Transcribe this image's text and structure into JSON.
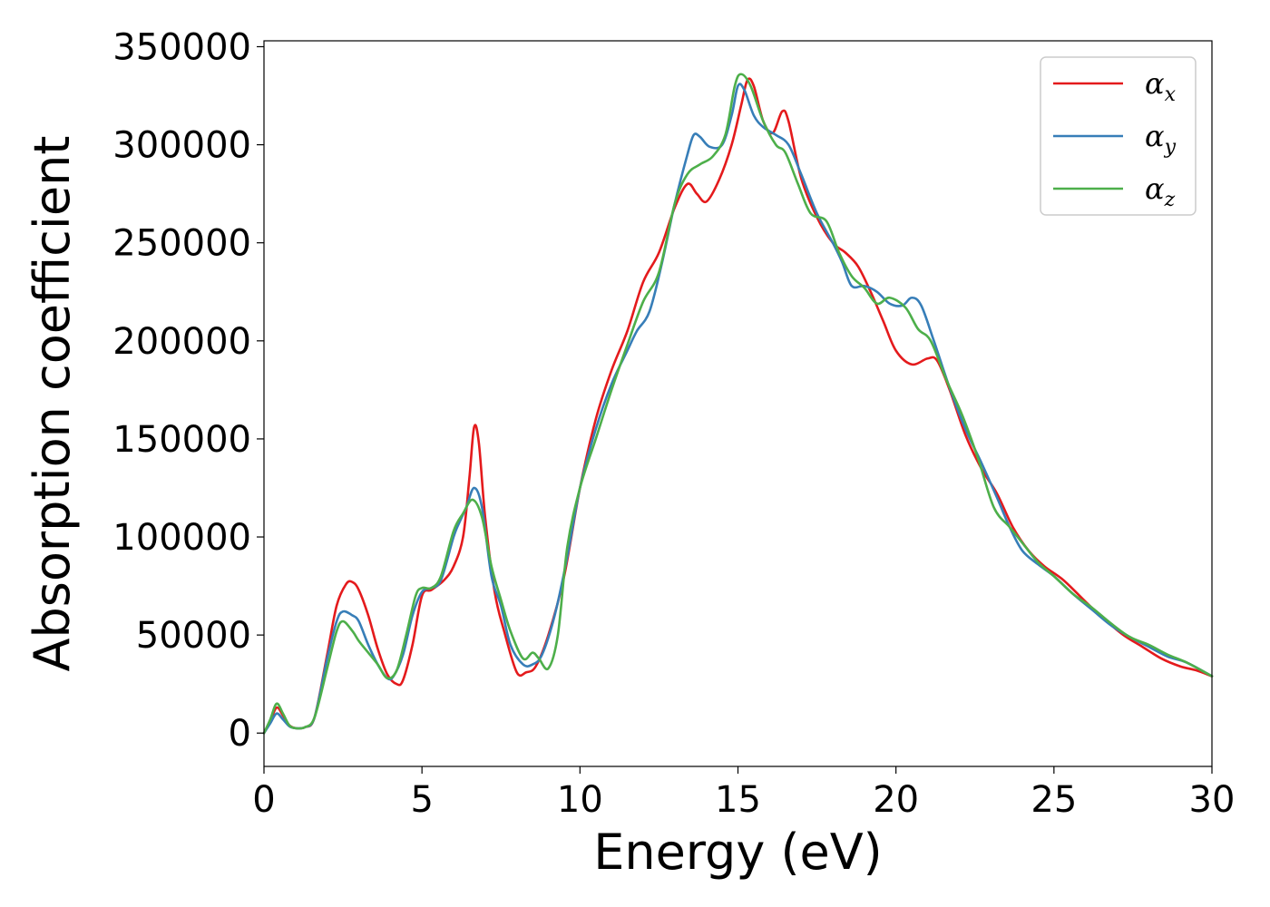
{
  "chart_data": {
    "type": "line",
    "xlabel": "Energy (eV)",
    "ylabel": "Absorption coefficient",
    "xlim": [
      0,
      30
    ],
    "ylim": [
      -17000,
      353000
    ],
    "xticks": [
      0,
      5,
      10,
      15,
      20,
      25,
      30
    ],
    "yticks": [
      0,
      50000,
      100000,
      150000,
      200000,
      250000,
      300000,
      350000
    ],
    "grid": false,
    "legend_position": "top-right",
    "series": [
      {
        "name": "α",
        "subscript": "x",
        "color": "#e41a1c",
        "points": [
          [
            0,
            0
          ],
          [
            0.2,
            6000
          ],
          [
            0.4,
            13000
          ],
          [
            0.6,
            9000
          ],
          [
            0.8,
            4000
          ],
          [
            1.0,
            2500
          ],
          [
            1.3,
            3000
          ],
          [
            1.6,
            8000
          ],
          [
            2.0,
            40000
          ],
          [
            2.3,
            65000
          ],
          [
            2.6,
            76000
          ],
          [
            2.8,
            77000
          ],
          [
            3.0,
            73000
          ],
          [
            3.3,
            60000
          ],
          [
            3.6,
            43000
          ],
          [
            3.9,
            30000
          ],
          [
            4.2,
            25000
          ],
          [
            4.4,
            27000
          ],
          [
            4.7,
            45000
          ],
          [
            5.0,
            70000
          ],
          [
            5.3,
            73000
          ],
          [
            5.7,
            78000
          ],
          [
            6.0,
            85000
          ],
          [
            6.3,
            100000
          ],
          [
            6.5,
            130000
          ],
          [
            6.65,
            156000
          ],
          [
            6.8,
            148000
          ],
          [
            7.0,
            110000
          ],
          [
            7.3,
            72000
          ],
          [
            7.6,
            52000
          ],
          [
            8.0,
            31000
          ],
          [
            8.3,
            31000
          ],
          [
            8.6,
            34000
          ],
          [
            9.0,
            50000
          ],
          [
            9.5,
            80000
          ],
          [
            10.0,
            125000
          ],
          [
            10.5,
            160000
          ],
          [
            11.0,
            185000
          ],
          [
            11.5,
            205000
          ],
          [
            12.0,
            230000
          ],
          [
            12.5,
            245000
          ],
          [
            13.0,
            268000
          ],
          [
            13.4,
            280000
          ],
          [
            13.7,
            275000
          ],
          [
            14.0,
            271000
          ],
          [
            14.4,
            282000
          ],
          [
            14.8,
            300000
          ],
          [
            15.1,
            320000
          ],
          [
            15.3,
            333000
          ],
          [
            15.5,
            330000
          ],
          [
            15.8,
            312000
          ],
          [
            16.1,
            306000
          ],
          [
            16.4,
            317000
          ],
          [
            16.6,
            312000
          ],
          [
            17.0,
            283000
          ],
          [
            17.5,
            263000
          ],
          [
            18.0,
            250000
          ],
          [
            18.4,
            245000
          ],
          [
            18.8,
            238000
          ],
          [
            19.2,
            225000
          ],
          [
            19.6,
            210000
          ],
          [
            20.0,
            195000
          ],
          [
            20.5,
            188000
          ],
          [
            21.0,
            191000
          ],
          [
            21.3,
            190000
          ],
          [
            21.7,
            175000
          ],
          [
            22.2,
            152000
          ],
          [
            22.7,
            135000
          ],
          [
            23.2,
            122000
          ],
          [
            23.7,
            105000
          ],
          [
            24.2,
            93000
          ],
          [
            24.7,
            85000
          ],
          [
            25.3,
            78000
          ],
          [
            26.0,
            67000
          ],
          [
            26.6,
            58000
          ],
          [
            27.2,
            50000
          ],
          [
            27.8,
            44000
          ],
          [
            28.4,
            38000
          ],
          [
            29.0,
            34000
          ],
          [
            29.5,
            32000
          ],
          [
            30,
            29000
          ]
        ]
      },
      {
        "name": "α",
        "subscript": "y",
        "color": "#377eb8",
        "points": [
          [
            0,
            0
          ],
          [
            0.2,
            5000
          ],
          [
            0.4,
            10000
          ],
          [
            0.6,
            7000
          ],
          [
            0.8,
            3500
          ],
          [
            1.0,
            2500
          ],
          [
            1.3,
            3000
          ],
          [
            1.6,
            8000
          ],
          [
            2.0,
            38000
          ],
          [
            2.3,
            57000
          ],
          [
            2.5,
            62000
          ],
          [
            2.8,
            60000
          ],
          [
            3.0,
            57000
          ],
          [
            3.3,
            45000
          ],
          [
            3.6,
            35000
          ],
          [
            3.9,
            28000
          ],
          [
            4.1,
            29000
          ],
          [
            4.4,
            40000
          ],
          [
            4.7,
            60000
          ],
          [
            5.0,
            72000
          ],
          [
            5.3,
            74000
          ],
          [
            5.6,
            78000
          ],
          [
            6.0,
            100000
          ],
          [
            6.2,
            108000
          ],
          [
            6.4,
            115000
          ],
          [
            6.65,
            125000
          ],
          [
            6.9,
            115000
          ],
          [
            7.2,
            80000
          ],
          [
            7.5,
            65000
          ],
          [
            7.8,
            45000
          ],
          [
            8.2,
            35000
          ],
          [
            8.5,
            35000
          ],
          [
            8.8,
            40000
          ],
          [
            9.2,
            60000
          ],
          [
            9.6,
            90000
          ],
          [
            10.0,
            125000
          ],
          [
            10.5,
            155000
          ],
          [
            11.0,
            178000
          ],
          [
            11.5,
            195000
          ],
          [
            11.8,
            205000
          ],
          [
            12.2,
            215000
          ],
          [
            12.6,
            240000
          ],
          [
            13.0,
            270000
          ],
          [
            13.4,
            295000
          ],
          [
            13.6,
            305000
          ],
          [
            13.8,
            304000
          ],
          [
            14.1,
            299000
          ],
          [
            14.5,
            300000
          ],
          [
            14.8,
            315000
          ],
          [
            15.0,
            330000
          ],
          [
            15.2,
            328000
          ],
          [
            15.5,
            315000
          ],
          [
            15.8,
            309000
          ],
          [
            16.2,
            305000
          ],
          [
            16.6,
            300000
          ],
          [
            17.0,
            285000
          ],
          [
            17.5,
            265000
          ],
          [
            18.0,
            250000
          ],
          [
            18.3,
            240000
          ],
          [
            18.6,
            228000
          ],
          [
            19.0,
            228000
          ],
          [
            19.4,
            225000
          ],
          [
            19.8,
            219000
          ],
          [
            20.2,
            218000
          ],
          [
            20.5,
            222000
          ],
          [
            20.8,
            218000
          ],
          [
            21.2,
            200000
          ],
          [
            21.7,
            176000
          ],
          [
            22.2,
            155000
          ],
          [
            22.7,
            138000
          ],
          [
            23.2,
            120000
          ],
          [
            23.6,
            105000
          ],
          [
            24.0,
            93000
          ],
          [
            24.5,
            86000
          ],
          [
            25.0,
            80000
          ],
          [
            25.6,
            71000
          ],
          [
            26.2,
            63000
          ],
          [
            26.8,
            55000
          ],
          [
            27.4,
            49000
          ],
          [
            28.0,
            44000
          ],
          [
            28.6,
            39000
          ],
          [
            29.2,
            36000
          ],
          [
            30,
            29000
          ]
        ]
      },
      {
        "name": "α",
        "subscript": "z",
        "color": "#4daf4a",
        "points": [
          [
            0,
            0
          ],
          [
            0.2,
            7000
          ],
          [
            0.4,
            15000
          ],
          [
            0.6,
            10000
          ],
          [
            0.8,
            4000
          ],
          [
            1.0,
            2500
          ],
          [
            1.3,
            3000
          ],
          [
            1.6,
            8000
          ],
          [
            2.0,
            33000
          ],
          [
            2.3,
            52000
          ],
          [
            2.5,
            57000
          ],
          [
            2.8,
            52000
          ],
          [
            3.0,
            47000
          ],
          [
            3.3,
            41000
          ],
          [
            3.6,
            35000
          ],
          [
            3.9,
            28000
          ],
          [
            4.2,
            32000
          ],
          [
            4.5,
            50000
          ],
          [
            4.8,
            70000
          ],
          [
            5.0,
            74000
          ],
          [
            5.3,
            74000
          ],
          [
            5.6,
            80000
          ],
          [
            6.0,
            103000
          ],
          [
            6.3,
            112000
          ],
          [
            6.6,
            119000
          ],
          [
            6.9,
            110000
          ],
          [
            7.2,
            85000
          ],
          [
            7.5,
            68000
          ],
          [
            7.8,
            52000
          ],
          [
            8.2,
            38000
          ],
          [
            8.5,
            41000
          ],
          [
            8.7,
            38000
          ],
          [
            9.0,
            33000
          ],
          [
            9.3,
            50000
          ],
          [
            9.6,
            95000
          ],
          [
            10.0,
            125000
          ],
          [
            10.5,
            150000
          ],
          [
            11.0,
            175000
          ],
          [
            11.5,
            198000
          ],
          [
            12.0,
            220000
          ],
          [
            12.5,
            235000
          ],
          [
            13.0,
            270000
          ],
          [
            13.4,
            285000
          ],
          [
            13.8,
            290000
          ],
          [
            14.2,
            294000
          ],
          [
            14.6,
            305000
          ],
          [
            14.9,
            330000
          ],
          [
            15.1,
            336000
          ],
          [
            15.4,
            330000
          ],
          [
            15.8,
            312000
          ],
          [
            16.2,
            300000
          ],
          [
            16.5,
            296000
          ],
          [
            16.9,
            280000
          ],
          [
            17.3,
            265000
          ],
          [
            17.8,
            261000
          ],
          [
            18.2,
            245000
          ],
          [
            18.6,
            233000
          ],
          [
            19.0,
            227000
          ],
          [
            19.4,
            219000
          ],
          [
            19.8,
            222000
          ],
          [
            20.3,
            217000
          ],
          [
            20.7,
            206000
          ],
          [
            21.1,
            200000
          ],
          [
            21.6,
            180000
          ],
          [
            22.1,
            162000
          ],
          [
            22.6,
            140000
          ],
          [
            23.1,
            115000
          ],
          [
            23.6,
            105000
          ],
          [
            24.0,
            97000
          ],
          [
            24.5,
            87000
          ],
          [
            25.0,
            80000
          ],
          [
            25.6,
            71000
          ],
          [
            26.2,
            64000
          ],
          [
            26.8,
            56000
          ],
          [
            27.4,
            49000
          ],
          [
            28.0,
            45000
          ],
          [
            28.6,
            40000
          ],
          [
            29.2,
            36000
          ],
          [
            30,
            29000
          ]
        ]
      }
    ]
  }
}
